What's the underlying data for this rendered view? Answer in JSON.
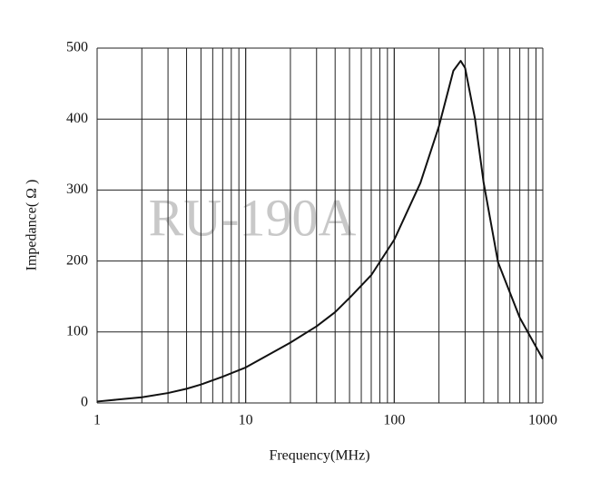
{
  "chart_data": {
    "type": "line",
    "annotation": "RU-190A",
    "x_label": "Frequency(MHz)",
    "y_label": "Impedance( Ω )",
    "xscale": "log",
    "xlim": [
      1,
      1000
    ],
    "ylim": [
      0,
      500
    ],
    "xticks": [
      1,
      10,
      100,
      1000
    ],
    "yticks": [
      0,
      100,
      200,
      300,
      400,
      500
    ],
    "xgrid": [
      2,
      3,
      4,
      5,
      6,
      7,
      8,
      9,
      10,
      20,
      30,
      40,
      50,
      60,
      70,
      80,
      90,
      100,
      200,
      300,
      400,
      500,
      600,
      700,
      800,
      900,
      1000
    ],
    "grid": true,
    "color": "#111111",
    "x": [
      1,
      2,
      3,
      4,
      5,
      7,
      10,
      20,
      30,
      40,
      50,
      70,
      100,
      150,
      200,
      250,
      280,
      300,
      350,
      400,
      500,
      700,
      1000
    ],
    "values": [
      2,
      8,
      14,
      20,
      26,
      37,
      50,
      85,
      108,
      128,
      148,
      180,
      230,
      310,
      390,
      468,
      482,
      472,
      400,
      310,
      198,
      120,
      62
    ]
  }
}
